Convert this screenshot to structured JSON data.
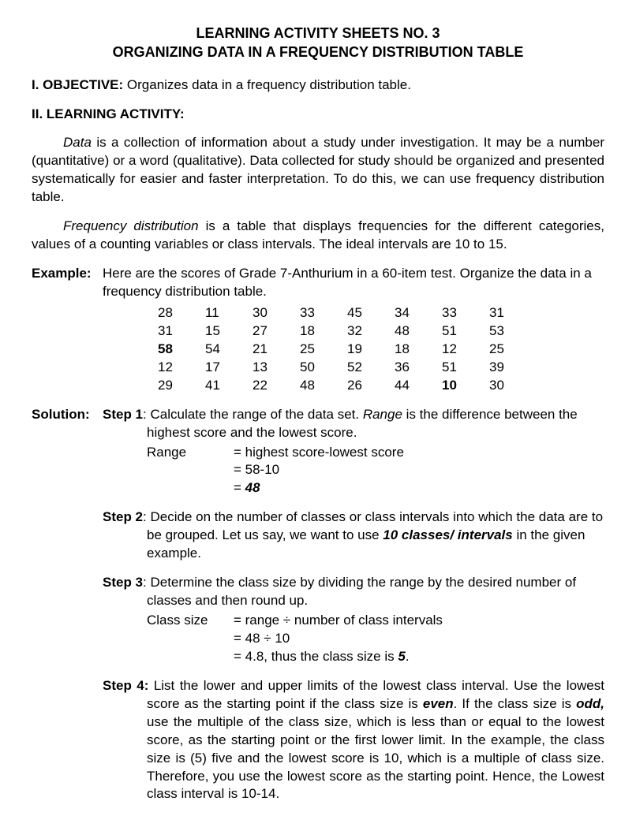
{
  "header": {
    "line1": "LEARNING ACTIVITY SHEETS NO. 3",
    "line2": "ORGANIZING DATA IN A FREQUENCY DISTRIBUTION TABLE"
  },
  "objective": {
    "label": "I. OBJECTIVE:",
    "text": " Organizes data in a frequency distribution table."
  },
  "activity": {
    "label": "II. LEARNING ACTIVITY:"
  },
  "para1": {
    "lead_italic": "Data",
    "rest": " is a collection of information about a study under investigation. It may be a number (quantitative) or a word (qualitative). Data collected for study should be organized and presented systematically for easier and faster interpretation. To do this, we can use frequency distribution table."
  },
  "para2": {
    "lead_italic": "Frequency distribution",
    "rest": " is a table that displays frequencies for the different categories, values of a counting variables or class intervals. The ideal intervals are 10 to 15."
  },
  "example": {
    "label": "Example:",
    "intro": "Here are the scores of Grade 7-Anthurium in a 60-item test. Organize the data in a frequency distribution table.",
    "data": [
      [
        "28",
        "11",
        "30",
        "33",
        "45",
        "34",
        "33",
        "31"
      ],
      [
        "31",
        "15",
        "27",
        "18",
        "32",
        "48",
        "51",
        "53"
      ],
      [
        "58",
        "54",
        "21",
        "25",
        "19",
        "18",
        "12",
        "25"
      ],
      [
        "12",
        "17",
        "13",
        "50",
        "52",
        "36",
        "51",
        "39"
      ],
      [
        "29",
        "41",
        "22",
        "48",
        "26",
        "44",
        "10",
        "30"
      ]
    ],
    "bold_cells": [
      [
        2,
        0
      ],
      [
        4,
        6
      ]
    ]
  },
  "solution": {
    "label": "Solution:",
    "step1": {
      "label": "Step 1",
      "text_a": ": Calculate the range of the data set. ",
      "range_word": "Range",
      "text_b": " is the difference between the highest score and the lowest score.",
      "calc_label": "Range",
      "calc1": "= highest score-lowest score",
      "calc2": "= 58-10",
      "calc3_eq": "= ",
      "calc3_val": "48"
    },
    "step2": {
      "label": "Step 2",
      "text_a": ": Decide on the number of classes or class intervals into which the data are to be grouped. Let us say, we want to use ",
      "bold": "10 classes/ intervals",
      "text_b": " in the given example."
    },
    "step3": {
      "label": "Step 3",
      "text": ":  Determine the class size by dividing the range by the desired number of classes and then round up.",
      "calc_label": "Class size",
      "calc1": "= range ÷ number of class intervals",
      "calc2": "= 48 ÷ 10",
      "calc3_a": "= 4.8, thus the class size is ",
      "calc3_b": "5",
      "calc3_c": "."
    },
    "step4": {
      "label": "Step 4:",
      "text_a": " List the lower and upper limits of the lowest class interval. Use the lowest score as the starting point if the class size is ",
      "even": "even",
      "text_b": ". If the class size is ",
      "odd": "odd,",
      "text_c": " use the multiple of the class size, which is less than or equal to the lowest score, as the starting point or the first lower limit. In the example, the class size is (5) five and the lowest score is 10, which is a multiple of class size. Therefore, you use the lowest score as the starting point. Hence, the Lowest class interval is 10-14."
    }
  }
}
